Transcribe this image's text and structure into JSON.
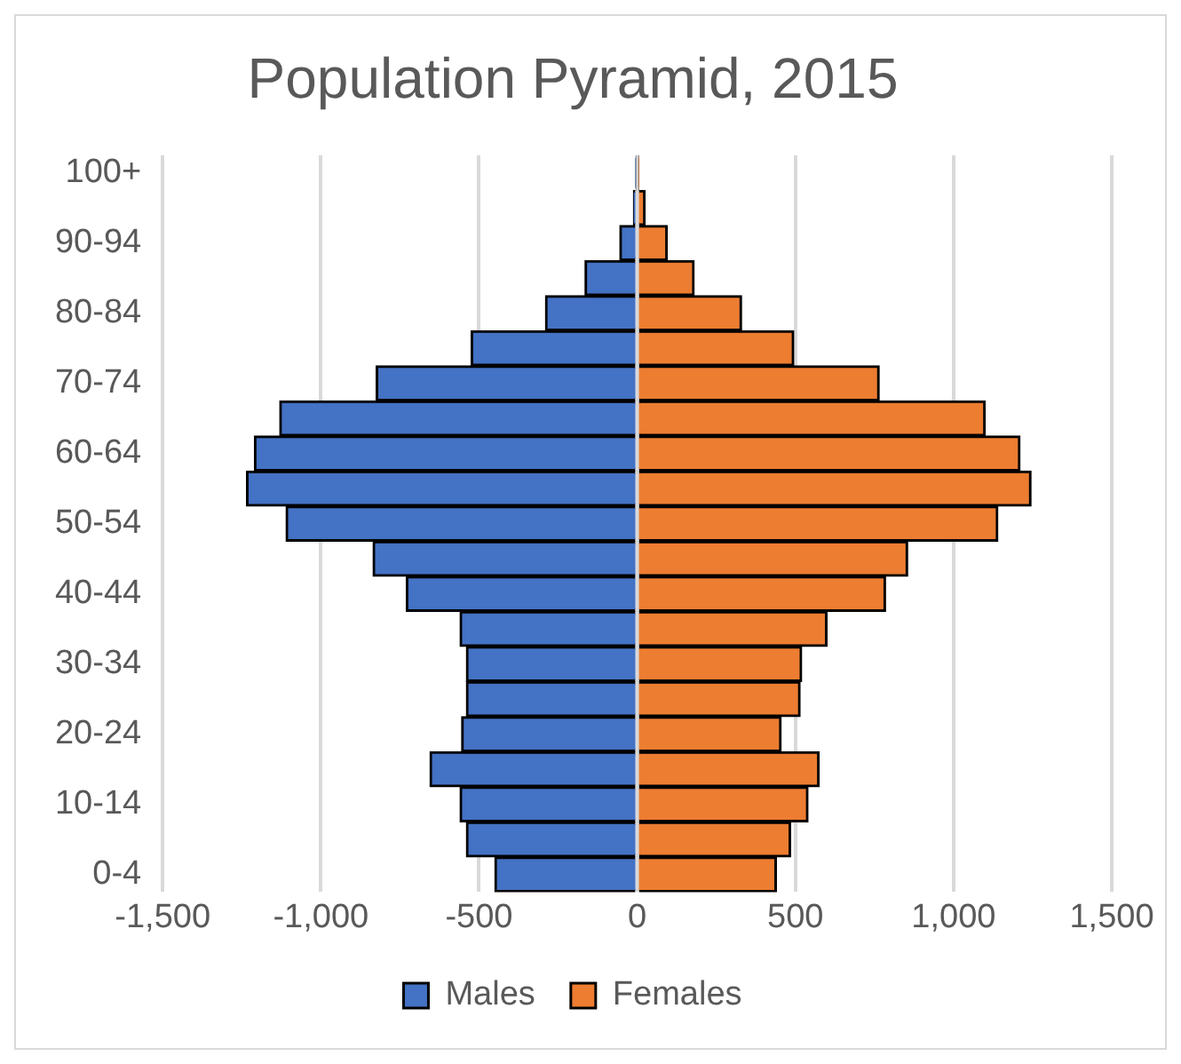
{
  "chart_data": {
    "type": "bar",
    "title": "Population Pyramid, 2015",
    "orientation": "horizontal",
    "stacked": true,
    "categories": [
      "100+",
      null,
      "90-94",
      null,
      "80-84",
      null,
      "70-74",
      null,
      "60-64",
      null,
      "50-54",
      null,
      "40-44",
      null,
      "30-34",
      null,
      "20-24",
      null,
      "10-14",
      null,
      "0-4"
    ],
    "series": [
      {
        "name": "Males",
        "color": "#4472c4",
        "values": [
          -5,
          -12,
          -55,
          -165,
          -290,
          -525,
          -825,
          -1130,
          -1210,
          -1235,
          -1110,
          -835,
          -730,
          -560,
          -540,
          -540,
          -555,
          -655,
          -560,
          -540,
          -450
        ]
      },
      {
        "name": "Females",
        "color": "#ed7d31",
        "values": [
          5,
          25,
          95,
          180,
          330,
          495,
          765,
          1100,
          1210,
          1245,
          1140,
          855,
          785,
          600,
          520,
          515,
          455,
          575,
          540,
          485,
          440
        ]
      }
    ],
    "xlim": [
      -1500,
      1500
    ],
    "xticks": [
      {
        "value": -1500,
        "label": "-1,500"
      },
      {
        "value": -1000,
        "label": "-1,000"
      },
      {
        "value": -500,
        "label": "-500"
      },
      0,
      500,
      {
        "value": 1000,
        "label": "1,000"
      },
      {
        "value": 1500,
        "label": "1,500"
      }
    ],
    "grid": "x",
    "legend": "bottom"
  }
}
